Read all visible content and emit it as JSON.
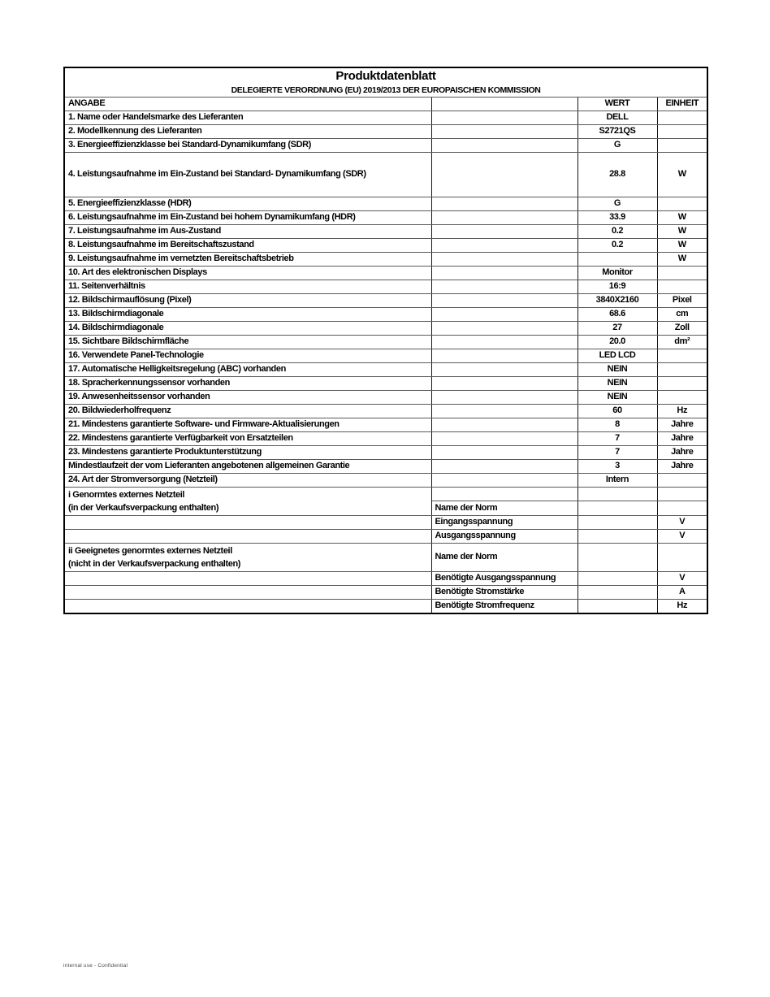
{
  "page": {
    "footer_note": "internal use - Confidential"
  },
  "table": {
    "title": "Produktdatenblatt",
    "subtitle": "DELEGIERTE VERORDNUNG (EU) 2019/2013 DER EUROPAISCHEN KOMMISSION",
    "columns": {
      "angabe": "ANGABE",
      "wert": "WERT",
      "einheit": "EINHEIT"
    },
    "rows": [
      {
        "c1": "1. Name oder Handelsmarke des Lieferanten",
        "wert": "DELL",
        "einheit": ""
      },
      {
        "c1": "2. Modellkennung des Lieferanten",
        "wert": "S2721QS",
        "einheit": ""
      },
      {
        "c1": "3. Energieeffizienzklasse bei Standard-Dynamikumfang (SDR)",
        "wert": "G",
        "einheit": ""
      },
      {
        "c1": "4. Leistungsaufnahme im Ein-Zustand bei Standard- Dynamikumfang (SDR)",
        "wert": "28.8",
        "einheit": "W",
        "tall": true
      },
      {
        "c1": "5. Energieeffizienzklasse (HDR)",
        "wert": "G",
        "einheit": ""
      },
      {
        "c1": "6. Leistungsaufnahme im Ein-Zustand bei hohem Dynamikumfang (HDR)",
        "wert": "33.9",
        "einheit": "W"
      },
      {
        "c1": "7. Leistungsaufnahme im Aus-Zustand",
        "wert": "0.2",
        "einheit": "W"
      },
      {
        "c1": "8. Leistungsaufnahme im Bereitschaftszustand",
        "wert": "0.2",
        "einheit": "W"
      },
      {
        "c1": "9. Leistungsaufnahme im vernetzten Bereitschaftsbetrieb",
        "wert": "",
        "einheit": "W"
      },
      {
        "c1": "10. Art des elektronischen Displays",
        "wert": "Monitor",
        "einheit": ""
      },
      {
        "c1": "11. Seitenverhältnis",
        "wert": "16:9",
        "einheit": ""
      },
      {
        "c1": "12. Bildschirmauflösung (Pixel)",
        "wert": "3840X2160",
        "einheit": "Pixel"
      },
      {
        "c1": "13. Bildschirmdiagonale",
        "wert": "68.6",
        "einheit": "cm"
      },
      {
        "c1": "14. Bildschirmdiagonale",
        "wert": "27",
        "einheit": "Zoll"
      },
      {
        "c1": "15. Sichtbare Bildschirmfläche",
        "wert": "20.0",
        "einheit": "dm²"
      },
      {
        "c1": "16. Verwendete Panel-Technologie",
        "wert": "LED LCD",
        "einheit": ""
      },
      {
        "c1": "17. Automatische Helligkeitsregelung (ABC) vorhanden",
        "wert": "NEIN",
        "einheit": ""
      },
      {
        "c1": "18. Spracherkennungssensor vorhanden",
        "wert": "NEIN",
        "einheit": ""
      },
      {
        "c1": "19. Anwesenheitssensor vorhanden",
        "wert": "NEIN",
        "einheit": ""
      },
      {
        "c1": "20. Bildwiederholfrequenz",
        "wert": "60",
        "einheit": "Hz"
      },
      {
        "c1": "21. Mindestens garantierte Software- und Firmware-Aktualisierungen",
        "wert": "8",
        "einheit": "Jahre"
      },
      {
        "c1": "22. Mindestens garantierte Verfügbarkeit von Ersatzteilen",
        "wert": "7",
        "einheit": "Jahre"
      },
      {
        "c1": "23. Mindestens garantierte Produktunterstützung",
        "wert": "7",
        "einheit": "Jahre"
      },
      {
        "c1": "Mindestlaufzeit der vom Lieferanten angebotenen allgemeinen Garantie",
        "wert": "3",
        "einheit": "Jahre"
      },
      {
        "c1": "24. Art der Stromversorgung (Netzteil)",
        "wert": "Intern",
        "einheit": ""
      },
      {
        "kind": "split2",
        "line1": "i Genormtes externes Netzteil",
        "line2": "(in der Verkaufsverpackung enthalten)",
        "c2": "Name der Norm"
      },
      {
        "c1": "",
        "c2": "Eingangsspannung",
        "wert": "",
        "einheit": "V"
      },
      {
        "c1": "",
        "c2": "Ausgangsspannung",
        "wert": "",
        "einheit": "V"
      },
      {
        "kind": "merged2",
        "line1": "ii Geeignetes genormtes externes Netzteil",
        "line2": "(nicht in der Verkaufsverpackung enthalten)",
        "c2": "Name der Norm"
      },
      {
        "c1": "",
        "c2": "Benötigte Ausgangsspannung",
        "wert": "",
        "einheit": "V"
      },
      {
        "c1": "",
        "c2": "Benötigte Stromstärke",
        "wert": "",
        "einheit": "A"
      },
      {
        "c1": "",
        "c2": "Benötigte Stromfrequenz",
        "wert": "",
        "einheit": "Hz"
      }
    ]
  }
}
